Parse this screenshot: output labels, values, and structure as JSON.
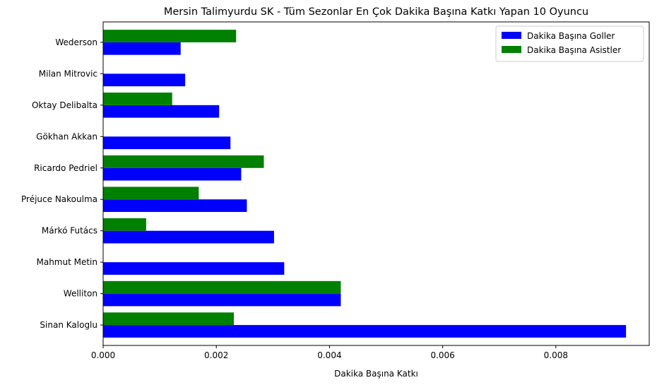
{
  "chart_data": {
    "type": "bar",
    "orientation": "horizontal",
    "title": "Mersin Talimyurdu SK - Tüm Sezonlar En Çok Dakika Başına Katkı Yapan 10 Oyuncu",
    "xlabel": "Dakika Başına Katkı",
    "ylabel": "",
    "xlim": [
      0,
      0.00965
    ],
    "xticks": [
      0.0,
      0.002,
      0.004,
      0.006,
      0.008
    ],
    "xtick_labels": [
      "0.000",
      "0.002",
      "0.004",
      "0.006",
      "0.008"
    ],
    "categories": [
      "Sinan Kaloglu",
      "Welliton",
      "Mahmut Metin",
      "Márkó Futács",
      "Préjuce Nakoulma",
      "Ricardo Pedriel",
      "Gökhan Akkan",
      "Oktay Delibalta",
      "Milan Mitrovic",
      "Wederson"
    ],
    "series": [
      {
        "name": "Dakika Başına Goller",
        "color": "#0000ff",
        "values": [
          0.00924,
          0.0042,
          0.0032,
          0.00302,
          0.00254,
          0.00244,
          0.00225,
          0.00205,
          0.00145,
          0.00137
        ]
      },
      {
        "name": "Dakika Başına Asistler",
        "color": "#008000",
        "values": [
          0.00231,
          0.0042,
          0,
          0.00076,
          0.00169,
          0.00284,
          0,
          0.00122,
          0,
          0.00235
        ]
      }
    ],
    "legend_position": "top-right",
    "grid": false
  }
}
